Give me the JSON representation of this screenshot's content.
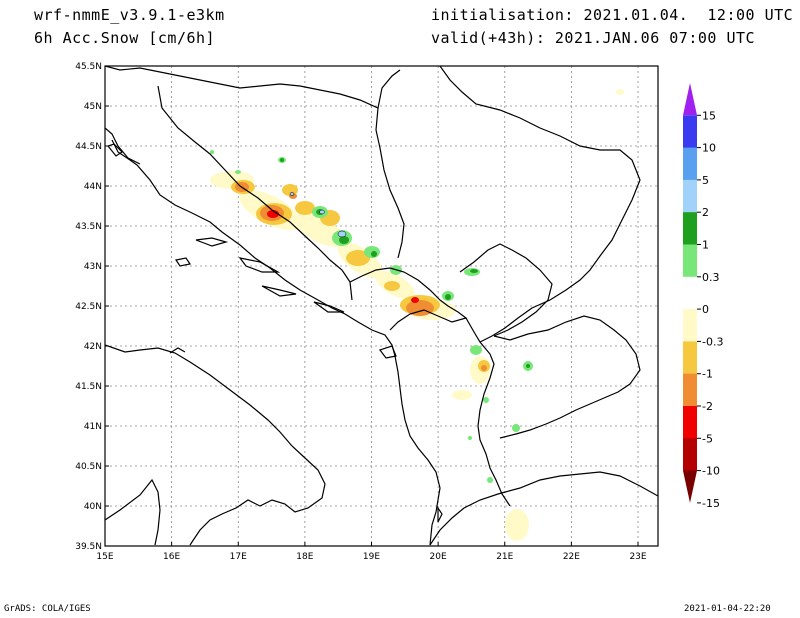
{
  "header": {
    "model": "wrf-nmmE_v3.9.1-e3km",
    "field": "6h Acc.Snow [cm/6h]",
    "init": "initialisation: 2021.01.04.  12:00 UTC",
    "valid": "valid(+43h): 2021.JAN.06 07:00 UTC"
  },
  "footer": {
    "left": "GrADS: COLA/IGES",
    "right": "2021-01-04-22:20"
  },
  "map": {
    "lon_ticks": [
      "15E",
      "16E",
      "17E",
      "18E",
      "19E",
      "20E",
      "21E",
      "22E",
      "23E"
    ],
    "lat_ticks": [
      "45.5N",
      "45N",
      "44.5N",
      "44N",
      "43.5N",
      "43N",
      "42.5N",
      "42N",
      "41.5N",
      "41N",
      "40.5N",
      "40N",
      "39.5N"
    ],
    "lon_range": [
      15,
      23.3
    ],
    "lat_range": [
      39.5,
      45.5
    ],
    "grid": true
  },
  "colorbar": {
    "labels": [
      "15",
      "10",
      "5",
      "2",
      "1",
      "0.3",
      "0",
      "-0.3",
      "-1",
      "-2",
      "-5",
      "-10",
      "-15"
    ],
    "colors": [
      "#a020f0",
      "#3a3af0",
      "#5aa0f0",
      "#a0d2fa",
      "#1ea01e",
      "#78e678",
      "#ffffff",
      "#fffac8",
      "#f5c840",
      "#f08c32",
      "#f00000",
      "#b40000",
      "#7a0000"
    ]
  }
}
